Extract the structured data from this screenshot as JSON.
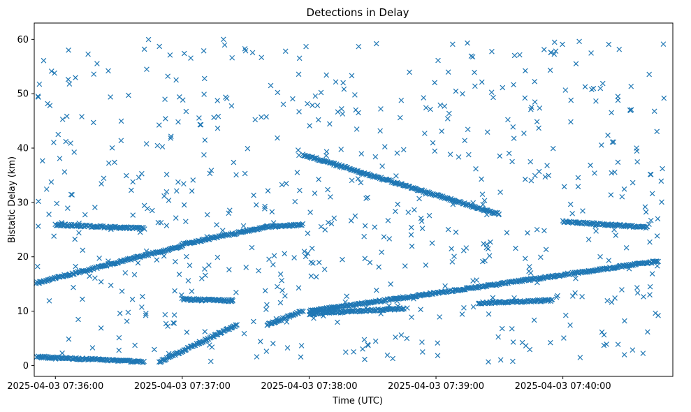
{
  "chart_data": {
    "type": "scatter",
    "title": "Detections in Delay",
    "xlabel": "Time (UTC)",
    "ylabel": "Bistatic Delay (km)",
    "marker": "x",
    "color": "#1f77b4",
    "grid": false,
    "x_unit": "time",
    "xlim": [
      "2025-04-03 07:35:50",
      "2025-04-03 07:40:52"
    ],
    "ylim": [
      -2,
      63
    ],
    "x_ticks": [
      "2025-04-03 07:36:00",
      "2025-04-03 07:37:00",
      "2025-04-03 07:38:00",
      "2025-04-03 07:39:00",
      "2025-04-03 07:40:00"
    ],
    "y_ticks": [
      0,
      10,
      20,
      30,
      40,
      50,
      60
    ],
    "tracks": [
      {
        "t_start": "2025-04-03 07:35:51",
        "t_end": "2025-04-03 07:36:42",
        "y_start": 1.6,
        "y_end": 0.7
      },
      {
        "t_start": "2025-04-03 07:36:49",
        "t_end": "2025-04-03 07:37:26",
        "y_start": 0.6,
        "y_end": 7.5
      },
      {
        "t_start": "2025-04-03 07:35:51",
        "t_end": "2025-04-03 07:37:00",
        "y_start": 15.2,
        "y_end": 22.0
      },
      {
        "t_start": "2025-04-03 07:37:00",
        "t_end": "2025-04-03 07:37:40",
        "y_start": 22.3,
        "y_end": 25.5
      },
      {
        "t_start": "2025-04-03 07:37:40",
        "t_end": "2025-04-03 07:37:57",
        "y_start": 25.5,
        "y_end": 25.9
      },
      {
        "t_start": "2025-04-03 07:37:57",
        "t_end": "2025-04-03 07:39:30",
        "y_start": 38.8,
        "y_end": 27.8
      },
      {
        "t_start": "2025-04-03 07:38:00",
        "t_end": "2025-04-03 07:40:45",
        "y_start": 10.0,
        "y_end": 19.2
      },
      {
        "t_start": "2025-04-03 07:40:00",
        "t_end": "2025-04-03 07:40:40",
        "y_start": 26.5,
        "y_end": 25.4
      },
      {
        "t_start": "2025-04-03 07:36:00",
        "t_end": "2025-04-03 07:36:42",
        "y_start": 25.9,
        "y_end": 25.2
      },
      {
        "t_start": "2025-04-03 07:37:00",
        "t_end": "2025-04-03 07:37:24",
        "y_start": 12.2,
        "y_end": 11.9
      },
      {
        "t_start": "2025-04-03 07:37:40",
        "t_end": "2025-04-03 07:37:57",
        "y_start": 7.5,
        "y_end": 10.0
      },
      {
        "t_start": "2025-04-03 07:38:00",
        "t_end": "2025-04-03 07:38:45",
        "y_start": 9.5,
        "y_end": 10.5
      },
      {
        "t_start": "2025-04-03 07:39:20",
        "t_end": "2025-04-03 07:39:55",
        "y_start": 11.5,
        "y_end": 12.0
      }
    ],
    "clutter": {
      "approx_count": 620,
      "t_range": [
        "2025-04-03 07:35:51",
        "2025-04-03 07:40:48"
      ],
      "y_range": [
        0.5,
        60
      ]
    }
  }
}
